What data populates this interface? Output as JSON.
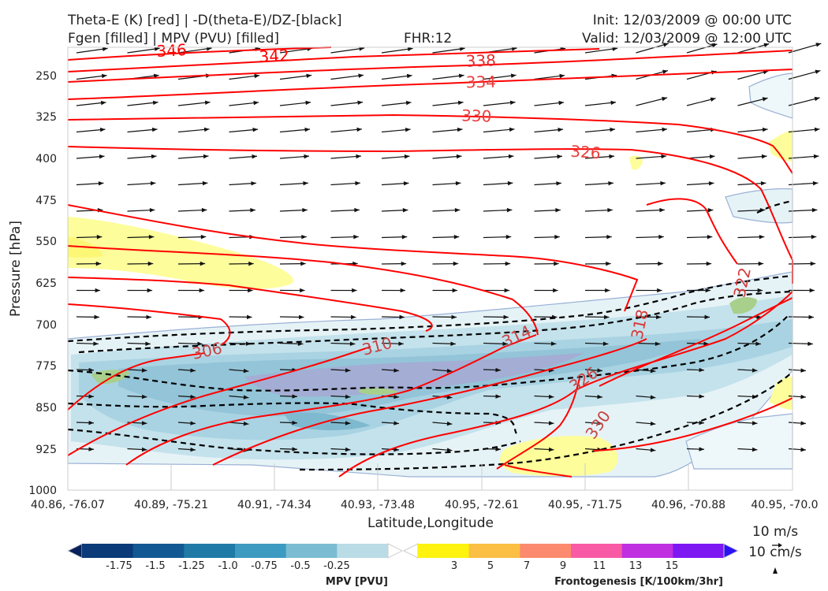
{
  "header": {
    "title_line1": "Theta-E (K) [red] | -D(theta-E)/DZ-[black]",
    "title_line2": "Fgen [filled] | MPV (PVU) [filled]",
    "fhr": "FHR:12",
    "init": "Init: 12/03/2009 @ 00:00 UTC",
    "valid": "Valid: 12/03/2009 @ 12:00 UTC"
  },
  "chart_data": {
    "type": "cross-section",
    "ylabel": "Pressure [hPa]",
    "xlabel": "Latitude,Longitude",
    "yticks": [
      "250",
      "325",
      "400",
      "475",
      "550",
      "625",
      "700",
      "775",
      "850",
      "925",
      "1000"
    ],
    "xticks": [
      "40.86, -76.07",
      "40.89, -75.21",
      "40.91, -74.34",
      "40.93, -73.48",
      "40.95, -72.61",
      "40.95, -71.75",
      "40.96, -70.88",
      "40.95, -70.0"
    ],
    "ylim": [
      1000,
      175
    ],
    "theta_e_labels": [
      "346",
      "342",
      "338",
      "334",
      "330",
      "326",
      "322",
      "318",
      "314",
      "310",
      "306",
      "326",
      "330"
    ],
    "theta_e_color": "#ff0000",
    "dthetae_color": "#000000",
    "wind_color": "#111111",
    "wind_reference": {
      "horizontal": "10 m/s",
      "vertical": "10 cm/s"
    },
    "mpv_colorbar": {
      "title": "MPV [PVU]",
      "labels": [
        "-1.75",
        "-1.5",
        "-1.25",
        "-1.0",
        "-0.75",
        "-0.5",
        "-0.25"
      ],
      "colors": [
        "#08215c",
        "#0b3a78",
        "#125993",
        "#1f7aa6",
        "#3d9ac0",
        "#7cbcd3",
        "#b9dce6",
        "#ffffff"
      ]
    },
    "fgen_colorbar": {
      "title": "Frontogenesis [K/100km/3hr]",
      "labels": [
        "3",
        "5",
        "7",
        "9",
        "11",
        "13",
        "15"
      ],
      "colors": [
        "#ffffff",
        "#fdf30e",
        "#fbbf43",
        "#fb8a6e",
        "#f95aa6",
        "#c030e0",
        "#7d18f3",
        "#2a12f5"
      ]
    }
  }
}
